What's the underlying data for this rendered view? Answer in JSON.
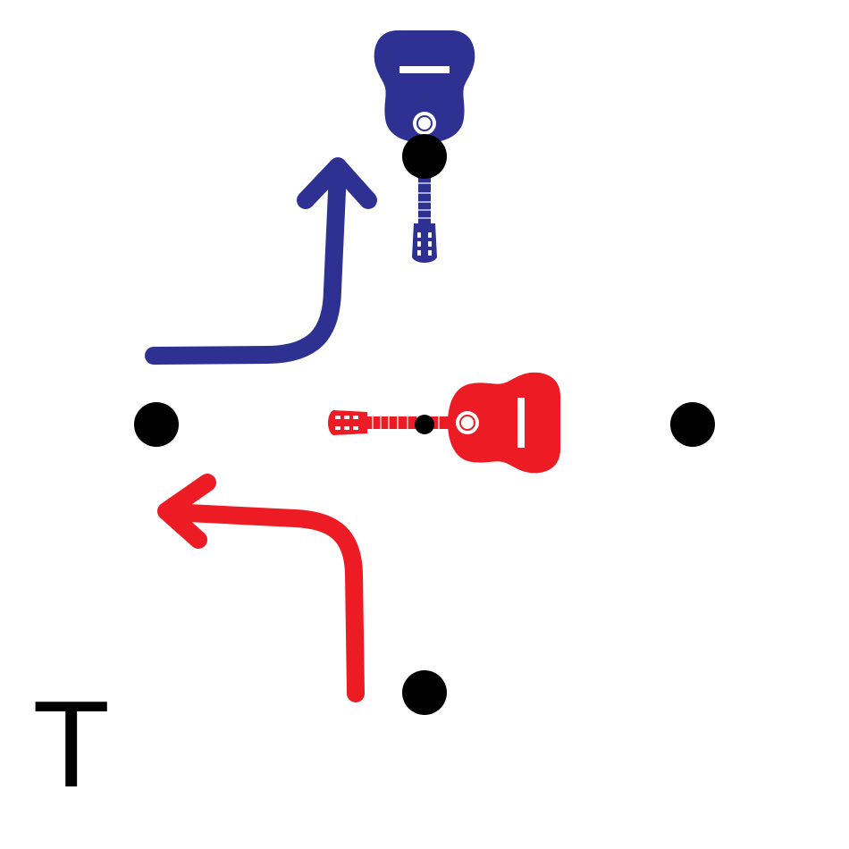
{
  "corner_label": "T",
  "colors": {
    "blue": "#2e3192",
    "red": "#ed1c24",
    "dot": "#000000",
    "background": "#ffffff"
  },
  "icons": {
    "blue_instrument": "guitar-icon",
    "red_instrument": "guitar-icon",
    "blue_arrow": "curved-arrow-up-icon",
    "red_arrow": "curved-arrow-left-icon"
  }
}
